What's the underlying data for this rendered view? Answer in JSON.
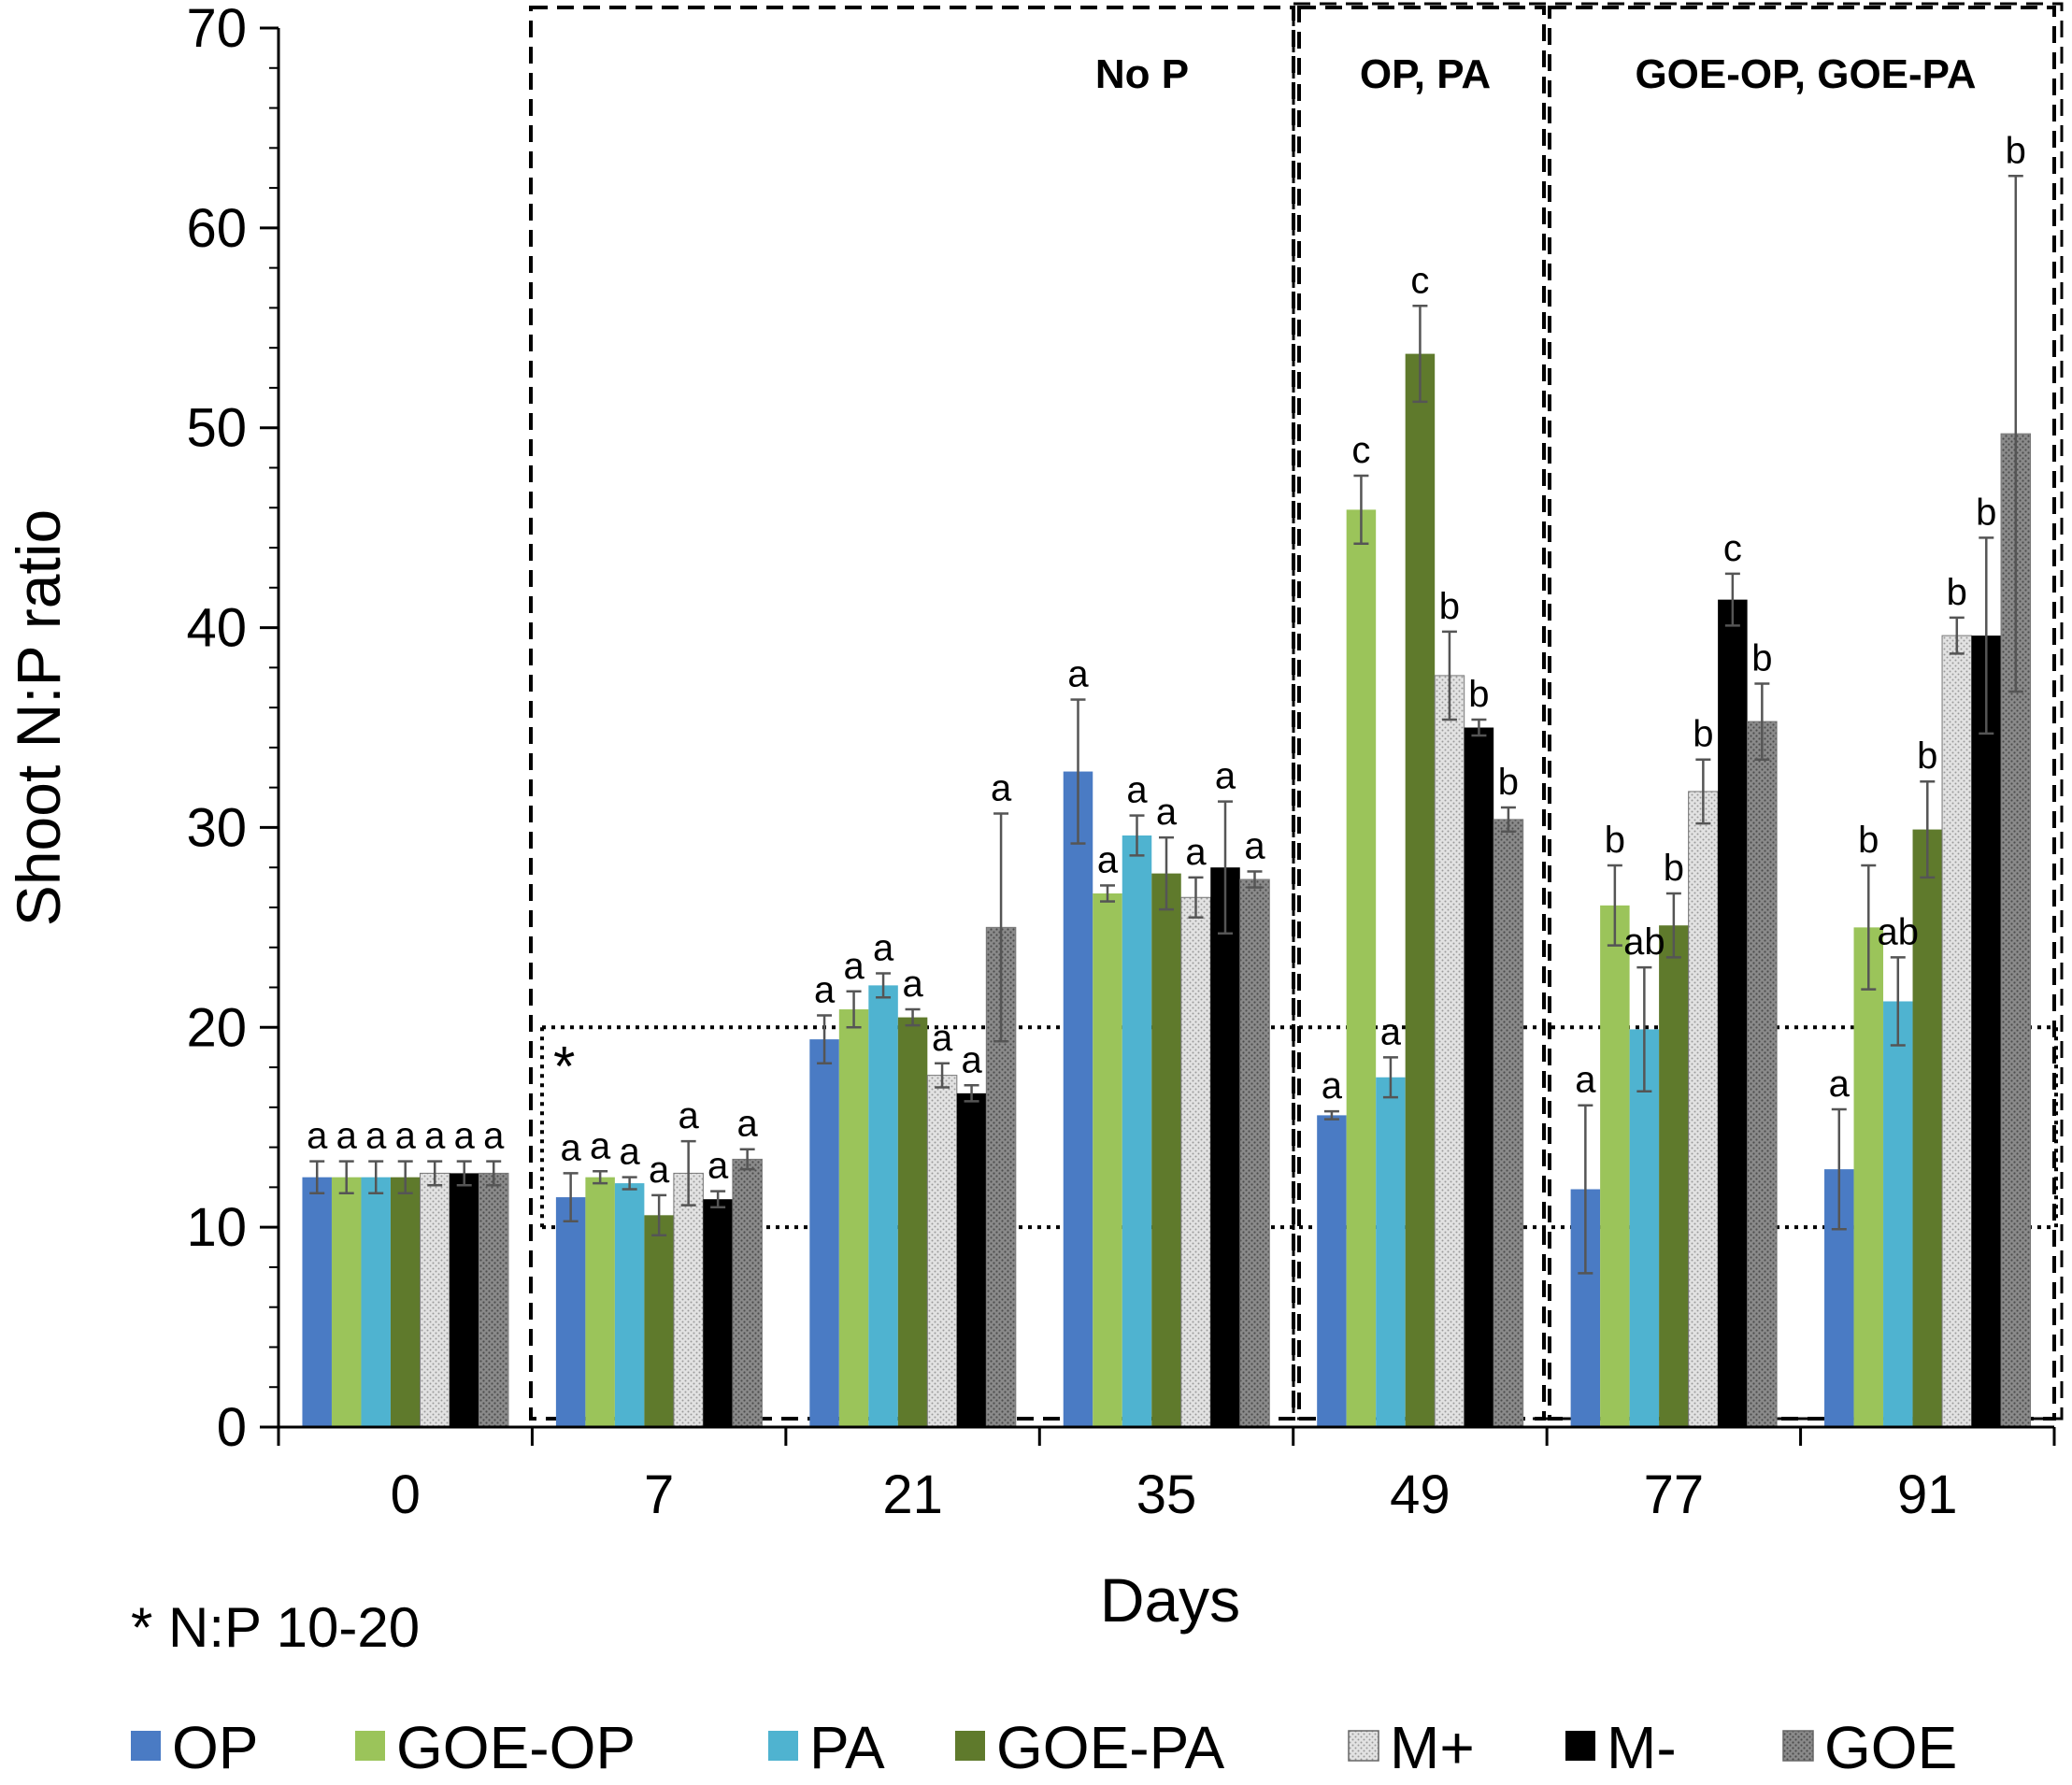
{
  "chart_data": {
    "type": "bar",
    "xlabel": "Days",
    "ylabel": "Shoot N:P ratio",
    "ylim": [
      0,
      70
    ],
    "yticks": [
      0,
      10,
      20,
      30,
      40,
      50,
      60,
      70
    ],
    "categories": [
      "0",
      "7",
      "21",
      "35",
      "49",
      "77",
      "91"
    ],
    "series": [
      {
        "name": "OP",
        "color": "#4a7bc4",
        "pattern": "solid",
        "values": [
          12.5,
          11.5,
          19.4,
          32.8,
          15.6,
          11.9,
          12.9
        ],
        "errors": [
          0.8,
          1.2,
          1.2,
          3.6,
          0.2,
          4.2,
          3.0
        ],
        "labels": [
          "a",
          "a",
          "a",
          "a",
          "a",
          "a",
          "a"
        ]
      },
      {
        "name": "GOE-OP",
        "color": "#9bc45a",
        "pattern": "solid",
        "values": [
          12.5,
          12.5,
          20.9,
          26.7,
          45.9,
          26.1,
          25.0
        ],
        "errors": [
          0.8,
          0.3,
          0.9,
          0.4,
          1.7,
          2.0,
          3.1
        ],
        "labels": [
          "a",
          "a",
          "a",
          "a",
          "c",
          "b",
          "b"
        ]
      },
      {
        "name": "PA",
        "color": "#4fb3d0",
        "pattern": "solid",
        "values": [
          12.5,
          12.2,
          22.1,
          29.6,
          17.5,
          19.9,
          21.3
        ],
        "errors": [
          0.8,
          0.3,
          0.6,
          1.0,
          1.0,
          3.1,
          2.2
        ],
        "labels": [
          "a",
          "a",
          "a",
          "a",
          "a",
          "ab",
          "ab"
        ]
      },
      {
        "name": "GOE-PA",
        "color": "#5f7a2c",
        "pattern": "solid",
        "values": [
          12.5,
          10.6,
          20.5,
          27.7,
          53.7,
          25.1,
          29.9
        ],
        "errors": [
          0.8,
          1.0,
          0.4,
          1.8,
          2.4,
          1.6,
          2.4
        ],
        "labels": [
          "a",
          "a",
          "a",
          "a",
          "c",
          "b",
          "b"
        ]
      },
      {
        "name": "M+",
        "color": "#d8d8d8",
        "pattern": "light-dots",
        "values": [
          12.7,
          12.7,
          17.6,
          26.5,
          37.6,
          31.8,
          39.6
        ],
        "errors": [
          0.6,
          1.6,
          0.6,
          1.0,
          2.2,
          1.6,
          0.9
        ],
        "labels": [
          "a",
          "a",
          "a",
          "a",
          "b",
          "b",
          "b"
        ]
      },
      {
        "name": "M-",
        "color": "#000000",
        "pattern": "solid",
        "values": [
          12.7,
          11.4,
          16.7,
          28.0,
          35.0,
          41.4,
          39.6
        ],
        "errors": [
          0.6,
          0.4,
          0.4,
          3.3,
          0.4,
          1.3,
          4.9
        ],
        "labels": [
          "a",
          "a",
          "a",
          "a",
          "b",
          "c",
          "b"
        ]
      },
      {
        "name": "GOE",
        "color": "#8c8c8c",
        "pattern": "dark-dots",
        "values": [
          12.7,
          13.4,
          25.0,
          27.4,
          30.4,
          35.3,
          49.7
        ],
        "errors": [
          0.6,
          0.5,
          5.7,
          0.4,
          0.6,
          1.9,
          12.9
        ],
        "labels": [
          "a",
          "a",
          "a",
          "a",
          "b",
          "b",
          "b"
        ]
      }
    ],
    "regions": [
      {
        "label": "No P"
      },
      {
        "label": "OP, PA"
      },
      {
        "label": "GOE-OP, GOE-PA"
      }
    ],
    "reference_band": {
      "low": 10,
      "high": 20,
      "marker": "*"
    },
    "note": "* N:P 10-20"
  }
}
